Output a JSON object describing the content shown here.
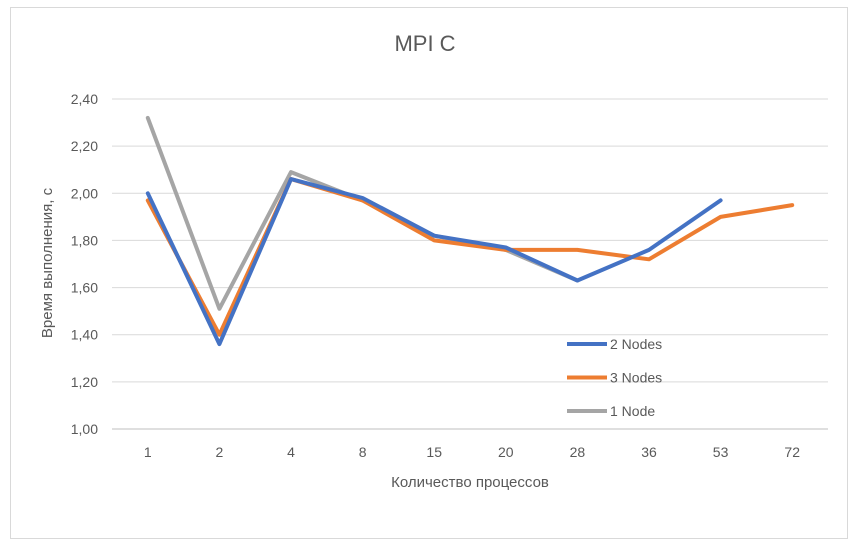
{
  "chart_data": {
    "type": "line",
    "title": "MPI C",
    "xlabel": "Количество процессов",
    "ylabel": "Время выполнения, с",
    "categories": [
      "1",
      "2",
      "4",
      "8",
      "15",
      "20",
      "28",
      "36",
      "53",
      "72"
    ],
    "y_ticks": [
      "1,00",
      "1,20",
      "1,40",
      "1,60",
      "1,80",
      "2,00",
      "2,20",
      "2,40"
    ],
    "ylim": [
      1.0,
      2.4
    ],
    "grid": true,
    "legend_position": "right",
    "series": [
      {
        "name": "2 Nodes",
        "color": "#4472c4",
        "values": [
          2.0,
          1.36,
          2.06,
          1.98,
          1.82,
          1.77,
          1.63,
          1.76,
          1.97,
          null
        ]
      },
      {
        "name": "3 Nodes",
        "color": "#ed7d31",
        "values": [
          1.97,
          1.4,
          2.06,
          1.97,
          1.8,
          1.76,
          1.76,
          1.72,
          1.9,
          1.95
        ]
      },
      {
        "name": "1 Node",
        "color": "#a5a5a5",
        "values": [
          2.32,
          1.51,
          2.09,
          1.97,
          1.82,
          1.76,
          1.63,
          null,
          null,
          null
        ]
      }
    ]
  }
}
